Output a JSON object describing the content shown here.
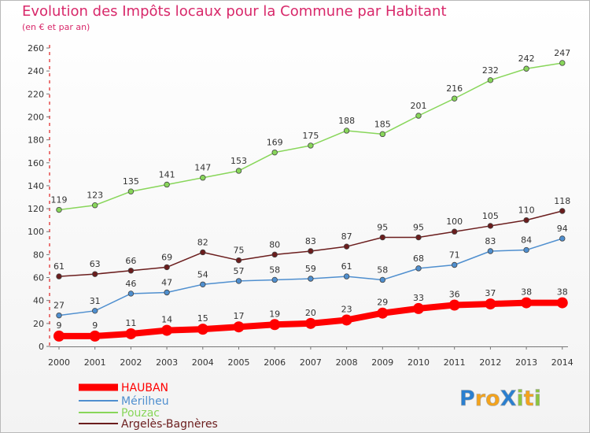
{
  "chart_data": {
    "type": "line",
    "title": "Evolution des Impôts locaux pour la Commune par Habitant",
    "subtitle": "(en € et par an)",
    "xlabel": "",
    "ylabel": "",
    "x": [
      "2000",
      "2001",
      "2002",
      "2003",
      "2004",
      "2005",
      "2006",
      "2007",
      "2008",
      "2009",
      "2010",
      "2011",
      "2012",
      "2013",
      "2014"
    ],
    "ylim": [
      0,
      260
    ],
    "yticks": [
      0,
      20,
      40,
      60,
      80,
      100,
      120,
      140,
      160,
      180,
      200,
      220,
      240,
      260
    ],
    "grid": false,
    "legend_position": "bottom-left",
    "series": [
      {
        "name": "HAUBAN",
        "color": "#ff0000",
        "values": [
          9,
          9,
          11,
          14,
          15,
          17,
          19,
          20,
          23,
          29,
          33,
          36,
          37,
          38,
          38
        ]
      },
      {
        "name": "Mérilheu",
        "color": "#4f8fcf",
        "values": [
          27,
          31,
          46,
          47,
          54,
          57,
          58,
          59,
          61,
          58,
          68,
          71,
          83,
          84,
          94
        ]
      },
      {
        "name": "Pouzac",
        "color": "#88d65a",
        "values": [
          119,
          123,
          135,
          141,
          147,
          153,
          169,
          175,
          188,
          185,
          201,
          216,
          232,
          242,
          247
        ]
      },
      {
        "name": "Argelès-Bagnères",
        "color": "#6b1d1d",
        "values": [
          61,
          63,
          66,
          69,
          82,
          75,
          80,
          83,
          87,
          95,
          95,
          100,
          105,
          110,
          118
        ]
      }
    ]
  },
  "logo": {
    "text": "ProXiti"
  }
}
